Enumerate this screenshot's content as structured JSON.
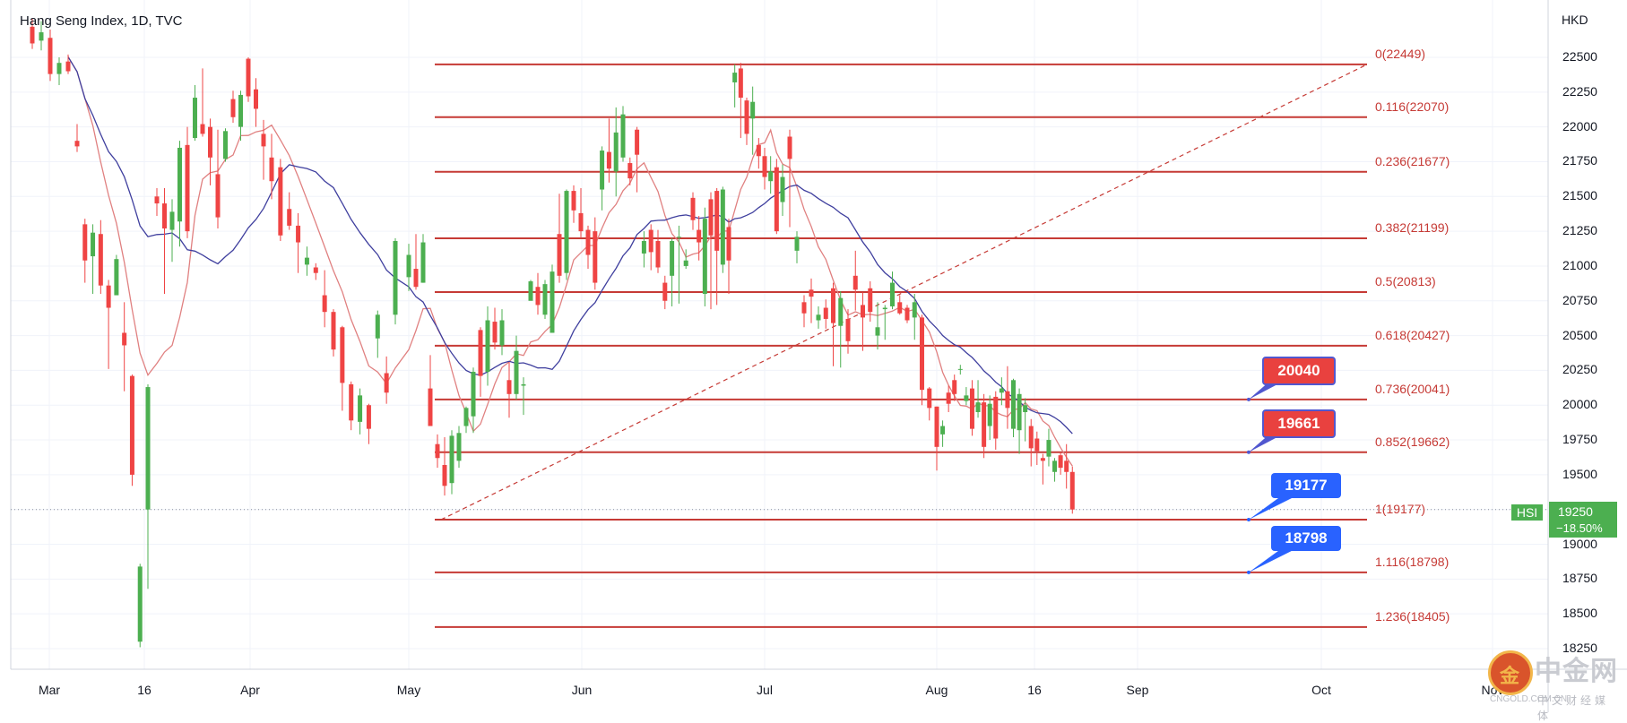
{
  "header": {
    "title": "Hang Seng Index, 1D, TVC",
    "currency": "HKD"
  },
  "price_tag": {
    "symbol": "HSI",
    "last": "19250",
    "change": "−18.50%"
  },
  "colors": {
    "up": "#4caf50",
    "down": "#ef4444",
    "fib": "#c63a35",
    "ma_fast": "#e08080",
    "ma_slow": "#3f3f9e",
    "callout_red": "#e9413f",
    "callout_blue": "#2962ff"
  },
  "callouts": [
    {
      "label": "20040",
      "style": "red",
      "price": 20041
    },
    {
      "label": "19661",
      "style": "red",
      "price": 19662
    },
    {
      "label": "19177",
      "style": "blue",
      "price": 19177
    },
    {
      "label": "18798",
      "style": "blue",
      "price": 18798
    }
  ],
  "watermark": {
    "badge": "金",
    "text": "中金网",
    "domain": "CNGOLD.COM.CN",
    "tagline": "中文财经媒体"
  },
  "chart_data": {
    "type": "candlestick",
    "title": "Hang Seng Index, 1D, TVC",
    "ylabel": "HKD",
    "ylim": [
      18100,
      22900
    ],
    "y_ticks": [
      18250,
      18500,
      18750,
      19000,
      19250,
      19500,
      19750,
      20000,
      20250,
      20500,
      20750,
      21000,
      21250,
      21500,
      21750,
      22000,
      22250,
      22500
    ],
    "x_ticks": [
      "Mar",
      "16",
      "Apr",
      "May",
      "Jun",
      "Jul",
      "Aug",
      "16",
      "Sep",
      "Oct",
      "Nov"
    ],
    "grid": true,
    "last_price": 19250,
    "last_change": "−18.50%",
    "fibonacci": [
      {
        "label": "0(22449)",
        "ratio": 0,
        "price": 22449
      },
      {
        "label": "0.116(22070)",
        "ratio": 0.116,
        "price": 22070
      },
      {
        "label": "0.236(21677)",
        "ratio": 0.236,
        "price": 21677
      },
      {
        "label": "0.382(21199)",
        "ratio": 0.382,
        "price": 21199
      },
      {
        "label": "0.5(20813)",
        "ratio": 0.5,
        "price": 20813
      },
      {
        "label": "0.618(20427)",
        "ratio": 0.618,
        "price": 20427
      },
      {
        "label": "0.736(20041)",
        "ratio": 0.736,
        "price": 20041
      },
      {
        "label": "0.852(19662)",
        "ratio": 0.852,
        "price": 19662
      },
      {
        "label": "1(19177)",
        "ratio": 1,
        "price": 19177
      },
      {
        "label": "1.116(18798)",
        "ratio": 1.116,
        "price": 18798
      },
      {
        "label": "1.236(18405)",
        "ratio": 1.236,
        "price": 18405
      }
    ],
    "candles": [
      [
        22720,
        22600,
        22780,
        22560
      ],
      [
        22620,
        22680,
        22760,
        22550
      ],
      [
        22640,
        22380,
        22700,
        22330
      ],
      [
        22380,
        22460,
        22500,
        22300
      ],
      [
        22470,
        22400,
        22520,
        22380
      ],
      [
        21900,
        21860,
        22020,
        21820
      ],
      [
        21300,
        21040,
        21340,
        20880
      ],
      [
        21070,
        21240,
        21300,
        20800
      ],
      [
        21230,
        20860,
        21330,
        20800
      ],
      [
        20860,
        20700,
        20900,
        20260
      ],
      [
        20790,
        21050,
        21080,
        20980
      ],
      [
        20520,
        20430,
        20740,
        20100
      ],
      [
        20210,
        19500,
        20220,
        19420
      ],
      [
        18300,
        18840,
        18860,
        18260
      ],
      [
        19250,
        20130,
        20150,
        18680
      ],
      [
        21500,
        21450,
        21560,
        21360
      ],
      [
        21450,
        21270,
        21560,
        20800
      ],
      [
        21260,
        21390,
        21480,
        21030
      ],
      [
        21320,
        21850,
        21900,
        21140
      ],
      [
        21870,
        21250,
        22000,
        21200
      ],
      [
        21920,
        22210,
        22300,
        21900
      ],
      [
        22020,
        21950,
        22420,
        21930
      ],
      [
        22000,
        21780,
        22060,
        21580
      ],
      [
        21660,
        21350,
        21980,
        21270
      ],
      [
        21770,
        21970,
        21990,
        21750
      ],
      [
        22200,
        22070,
        22260,
        22030
      ],
      [
        22000,
        22230,
        22260,
        21900
      ],
      [
        22490,
        22220,
        22500,
        22180
      ],
      [
        22270,
        22130,
        22350,
        22000
      ],
      [
        21950,
        21860,
        22050,
        21620
      ],
      [
        21780,
        21610,
        21950,
        21480
      ],
      [
        21710,
        21220,
        21770,
        21180
      ],
      [
        21410,
        21290,
        21530,
        21260
      ],
      [
        21290,
        21170,
        21380,
        20950
      ],
      [
        21010,
        21060,
        21140,
        20930
      ],
      [
        20990,
        20950,
        21020,
        20900
      ],
      [
        20790,
        20670,
        20970,
        20560
      ],
      [
        20670,
        20400,
        20690,
        20350
      ],
      [
        20560,
        20160,
        20570,
        19960
      ],
      [
        20150,
        19890,
        20170,
        19820
      ],
      [
        19880,
        20070,
        20120,
        19790
      ],
      [
        20000,
        19830,
        20010,
        19720
      ],
      [
        20480,
        20650,
        20680,
        20340
      ],
      [
        20230,
        20090,
        20350,
        20010
      ],
      [
        20650,
        21180,
        21200,
        20580
      ],
      [
        20920,
        21080,
        21160,
        20820
      ],
      [
        20980,
        20850,
        21230,
        20830
      ],
      [
        20880,
        21170,
        21230,
        20880
      ],
      [
        20120,
        19850,
        20360,
        19870
      ],
      [
        19720,
        19620,
        19790,
        19550
      ],
      [
        19570,
        19420,
        19770,
        19350
      ],
      [
        19440,
        19780,
        19820,
        19360
      ],
      [
        19600,
        19800,
        19850,
        19550
      ],
      [
        19850,
        19980,
        19990,
        19800
      ],
      [
        19920,
        20240,
        20270,
        19800
      ],
      [
        20540,
        20210,
        20560,
        20060
      ],
      [
        20240,
        20610,
        20710,
        20140
      ],
      [
        20600,
        20450,
        20700,
        20400
      ],
      [
        20430,
        20610,
        20690,
        20360
      ],
      [
        20180,
        20080,
        20310,
        19910
      ],
      [
        20080,
        20390,
        20500,
        20040
      ],
      [
        20140,
        20150,
        20200,
        19930
      ],
      [
        20750,
        20890,
        20900,
        20790
      ],
      [
        20850,
        20720,
        20950,
        20650
      ],
      [
        20650,
        20870,
        20900,
        20620
      ],
      [
        20520,
        20960,
        21010,
        20520
      ],
      [
        21230,
        20930,
        21520,
        20880
      ],
      [
        20950,
        21540,
        21550,
        20900
      ],
      [
        21540,
        21400,
        21580,
        21310
      ],
      [
        21380,
        21250,
        21560,
        21200
      ],
      [
        21260,
        21080,
        21290,
        20980
      ],
      [
        21250,
        20880,
        21350,
        20830
      ],
      [
        21550,
        21830,
        21860,
        21400
      ],
      [
        21820,
        21700,
        22060,
        21600
      ],
      [
        21680,
        21960,
        22140,
        21500
      ],
      [
        21780,
        22090,
        22150,
        21750
      ],
      [
        21740,
        21630,
        21780,
        21580
      ],
      [
        21980,
        21800,
        22000,
        21530
      ],
      [
        21090,
        21180,
        21250,
        20990
      ],
      [
        21260,
        21100,
        21300,
        20970
      ],
      [
        21180,
        20990,
        21260,
        20950
      ],
      [
        20880,
        20750,
        20930,
        20690
      ],
      [
        20930,
        21180,
        21200,
        20710
      ],
      [
        21210,
        21210,
        21290,
        20730
      ],
      [
        21000,
        21040,
        21120,
        20980
      ],
      [
        21490,
        21330,
        21530,
        21260
      ],
      [
        21260,
        21170,
        21360,
        21040
      ],
      [
        20800,
        21340,
        21420,
        20710
      ],
      [
        21480,
        21220,
        21530,
        20690
      ],
      [
        21540,
        21110,
        21560,
        20720
      ],
      [
        21010,
        21550,
        21570,
        20950
      ],
      [
        21280,
        21040,
        21340,
        20800
      ],
      [
        22320,
        22390,
        22450,
        22140
      ],
      [
        22420,
        22210,
        22460,
        21920
      ],
      [
        22190,
        21950,
        22210,
        21870
      ],
      [
        22060,
        22180,
        22290,
        21800
      ],
      [
        21870,
        21790,
        21920,
        21700
      ],
      [
        21790,
        21640,
        21850,
        21550
      ],
      [
        21610,
        21680,
        21790,
        21520
      ],
      [
        21710,
        21250,
        21770,
        21230
      ],
      [
        21460,
        21640,
        21730,
        21360
      ],
      [
        21930,
        21770,
        21980,
        21280
      ],
      [
        21110,
        21210,
        21250,
        21020
      ],
      [
        20740,
        20660,
        20790,
        20560
      ],
      [
        20830,
        20780,
        20910,
        20590
      ],
      [
        20610,
        20650,
        20710,
        20550
      ],
      [
        20700,
        20620,
        20760,
        20550
      ],
      [
        20840,
        20590,
        20880,
        20280
      ],
      [
        20570,
        20770,
        20820,
        20270
      ],
      [
        20620,
        20460,
        20690,
        20370
      ],
      [
        20930,
        20830,
        21110,
        20680
      ],
      [
        20720,
        20630,
        20810,
        20390
      ],
      [
        20840,
        20670,
        20890,
        20600
      ],
      [
        20500,
        20560,
        20740,
        20400
      ],
      [
        20690,
        20700,
        20720,
        20470
      ],
      [
        20710,
        20880,
        20960,
        20690
      ],
      [
        20740,
        20660,
        20790,
        20650
      ],
      [
        20700,
        20610,
        20720,
        20590
      ],
      [
        20630,
        20740,
        20800,
        20470
      ],
      [
        20630,
        20110,
        20650,
        20000
      ],
      [
        20120,
        19980,
        20130,
        19890
      ],
      [
        19990,
        19700,
        19990,
        19530
      ],
      [
        19790,
        19850,
        19890,
        19700
      ],
      [
        20090,
        20010,
        20140,
        19950
      ],
      [
        20180,
        20080,
        20220,
        20030
      ],
      [
        20260,
        20260,
        20290,
        20220
      ],
      [
        20030,
        20070,
        20130,
        20000
      ],
      [
        20120,
        19830,
        20180,
        19780
      ],
      [
        19950,
        20020,
        20180,
        19910
      ],
      [
        20020,
        19700,
        20080,
        19620
      ],
      [
        19850,
        20010,
        20070,
        19750
      ],
      [
        20060,
        19760,
        20100,
        19680
      ],
      [
        20090,
        20120,
        20200,
        20000
      ],
      [
        20100,
        19980,
        20280,
        19830
      ],
      [
        19830,
        20180,
        20190,
        19770
      ],
      [
        19820,
        20080,
        20120,
        19650
      ],
      [
        19950,
        20000,
        20050,
        19740
      ],
      [
        19850,
        19690,
        19900,
        19560
      ],
      [
        19760,
        19670,
        19810,
        19570
      ],
      [
        19620,
        19600,
        19650,
        19430
      ],
      [
        19630,
        19750,
        19830,
        19560
      ],
      [
        19520,
        19600,
        19620,
        19450
      ],
      [
        19640,
        19550,
        19660,
        19500
      ],
      [
        19600,
        19520,
        19720,
        19400
      ],
      [
        19520,
        19250,
        19560,
        19220
      ]
    ]
  }
}
